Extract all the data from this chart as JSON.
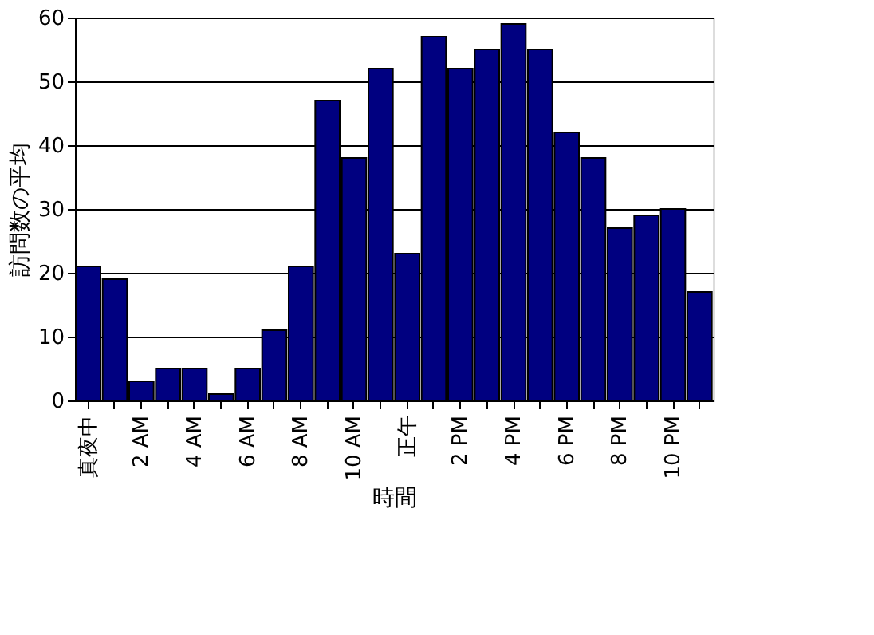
{
  "chart_data": {
    "type": "bar",
    "xlabel": "時間",
    "ylabel": "訪問数の平均",
    "categories": [
      "真夜中",
      null,
      "2 AM",
      null,
      "4 AM",
      null,
      "6 AM",
      null,
      "8 AM",
      null,
      "10 AM",
      null,
      "正午",
      null,
      "2 PM",
      null,
      "4 PM",
      null,
      "6 PM",
      null,
      "8 PM",
      null,
      "10 PM",
      null
    ],
    "values": [
      21,
      19,
      3,
      5,
      5,
      1,
      5,
      11,
      21,
      47,
      38,
      52,
      23,
      57,
      52,
      55,
      59,
      55,
      42,
      38,
      27,
      29,
      30,
      17
    ],
    "color": "#000080",
    "ylim": [
      0,
      60
    ],
    "yticks": [
      0,
      10,
      20,
      30,
      40,
      50,
      60
    ],
    "grid": "y"
  }
}
